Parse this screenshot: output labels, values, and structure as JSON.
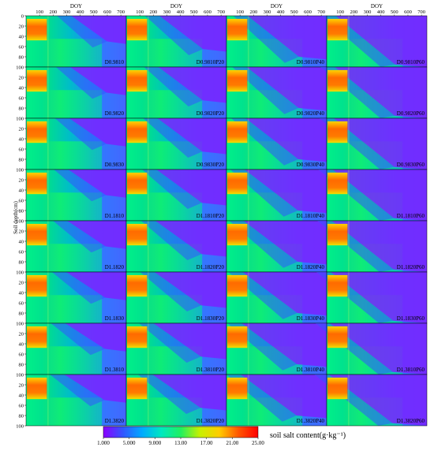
{
  "chart_data": {
    "type": "heatmap",
    "panel_grid": {
      "rows": 8,
      "cols": 4
    },
    "xlabel": "DOY",
    "ylabel": "Soil depth(cm)",
    "x_ticks": [
      "100",
      "200",
      "300",
      "400",
      "500",
      "600",
      "700"
    ],
    "y_ticks": [
      "20",
      "40",
      "60",
      "80",
      "100"
    ],
    "panel_labels": [
      [
        "D0.9810",
        "D0.9810P20",
        "D0.9810P40",
        "D0.9810P60"
      ],
      [
        "D0.9820",
        "D0.9820P20",
        "D0.9820P40",
        "D0.9820P60"
      ],
      [
        "D0.9830",
        "D0.9830P20",
        "D0.9830P40",
        "D0.9830P60"
      ],
      [
        "D1.1810",
        "D1.1810P20",
        "D1.1810P40",
        "D1.1810P60"
      ],
      [
        "D1.1820",
        "D1.1820P20",
        "D1.1820P40",
        "D1.1820P60"
      ],
      [
        "D1.1830",
        "D1.1830P20",
        "D1.1830P40",
        "D1.1830P60"
      ],
      [
        "D1.3810",
        "D1.3810P20",
        "D1.3810P40",
        "D1.3810P60"
      ],
      [
        "D1.3820",
        "D1.3820P20",
        "D1.3820P40",
        "D1.3820P60"
      ]
    ],
    "colorbar": {
      "title": "soil salt content(g·kg⁻¹)",
      "ticks": [
        "1.000",
        "5.000",
        "9.000",
        "13.00",
        "17.00",
        "21.00",
        "25.00"
      ],
      "range": [
        1,
        25
      ],
      "colors": [
        "#8a00ff",
        "#3355ff",
        "#00aaff",
        "#00e8c0",
        "#20f060",
        "#c8f000",
        "#ffcc00",
        "#ff5500",
        "#ff0000"
      ]
    }
  }
}
